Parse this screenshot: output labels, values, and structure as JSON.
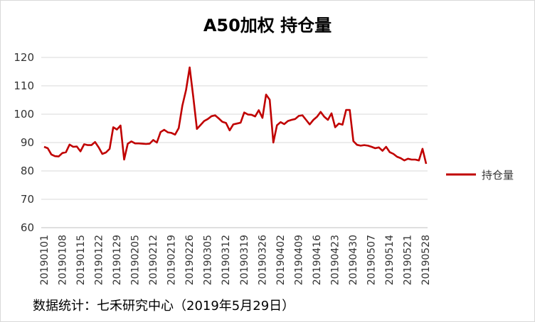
{
  "title": "A50加权  持仓量",
  "source_note": "数据统计：七禾研究中心（2019年5月29日）",
  "colors": {
    "line": "#c00000",
    "grid": "#d9d9d9",
    "axis": "#bfbfbf"
  },
  "chart_data": {
    "type": "line",
    "title": "A50加权  持仓量",
    "xlabel": "",
    "ylabel": "",
    "ylim": [
      60,
      120
    ],
    "yticks": [
      60,
      70,
      80,
      90,
      100,
      110,
      120
    ],
    "grid": "horizontal",
    "legend_position": "right",
    "xtick_labels": [
      "20190101",
      "20190108",
      "20190115",
      "20190122",
      "20190129",
      "20190205",
      "20190212",
      "20190219",
      "20190226",
      "20190305",
      "20190312",
      "20190319",
      "20190326",
      "20190402",
      "20190409",
      "20190416",
      "20190423",
      "20190430",
      "20190507",
      "20190514",
      "20190521",
      "20190528"
    ],
    "series": [
      {
        "name": "持仓量",
        "color": "#c00000",
        "values": [
          88.5,
          88.0,
          85.8,
          85.2,
          85.1,
          86.3,
          86.6,
          89.3,
          88.5,
          88.6,
          86.9,
          89.4,
          89.1,
          89.1,
          90.2,
          88.3,
          86.0,
          86.5,
          87.8,
          95.4,
          94.6,
          96.0,
          84.0,
          89.6,
          90.4,
          89.7,
          89.7,
          89.6,
          89.5,
          89.6,
          90.9,
          90.0,
          93.7,
          94.5,
          93.6,
          93.4,
          92.8,
          95.1,
          103.0,
          108.5,
          116.5,
          106.0,
          94.8,
          96.2,
          97.6,
          98.3,
          99.3,
          99.6,
          98.5,
          97.3,
          96.9,
          94.3,
          96.4,
          96.7,
          97.0,
          100.6,
          99.9,
          99.8,
          99.2,
          101.4,
          98.7,
          106.9,
          105.1,
          90.0,
          96.1,
          97.2,
          96.5,
          97.6,
          98.0,
          98.3,
          99.4,
          99.6,
          98.0,
          96.4,
          98.0,
          99.1,
          100.8,
          99.1,
          98.0,
          100.3,
          95.4,
          96.7,
          96.3,
          101.5,
          101.5,
          90.5,
          89.2,
          88.9,
          89.1,
          88.9,
          88.5,
          88.0,
          88.3,
          87.1,
          88.5,
          86.6,
          86.0,
          85.0,
          84.5,
          83.7,
          84.3,
          84.0,
          84.0,
          83.7,
          87.8,
          82.5
        ]
      }
    ]
  }
}
